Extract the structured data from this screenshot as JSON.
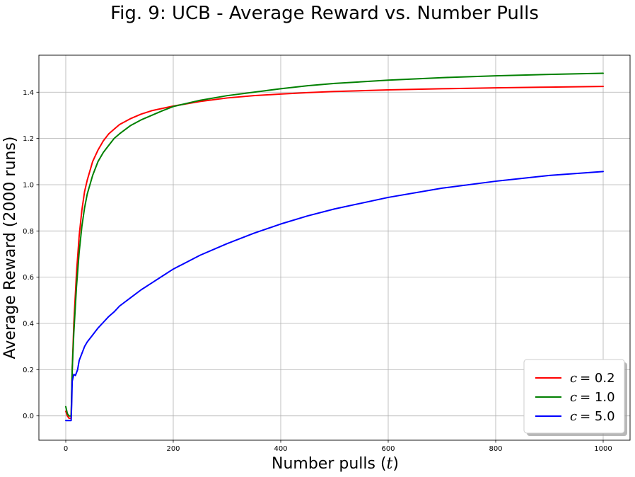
{
  "chart_data": {
    "type": "line",
    "title": "Fig. 9: UCB - Average Reward vs. Number Pulls",
    "xlabel_prefix": "Number pulls (",
    "xlabel_var": "t",
    "xlabel_suffix": ")",
    "ylabel": "Average Reward (2000 runs)",
    "xlim": [
      -50,
      1050
    ],
    "ylim": [
      -0.105,
      1.56
    ],
    "xticks": [
      0,
      200,
      400,
      600,
      800,
      1000
    ],
    "xtick_labels": [
      "0",
      "200",
      "400",
      "600",
      "800",
      "1000"
    ],
    "yticks": [
      0.0,
      0.2,
      0.4,
      0.6,
      0.8,
      1.0,
      1.2,
      1.4
    ],
    "ytick_labels": [
      "0.0",
      "0.2",
      "0.4",
      "0.6",
      "0.8",
      "1.0",
      "1.2",
      "1.4"
    ],
    "grid": true,
    "legend_position": "lower-right",
    "series": [
      {
        "name": "c = 0.2",
        "legend_var": "c",
        "legend_value": "= 0.2",
        "color": "#ff0000",
        "points": [
          [
            0,
            0.02
          ],
          [
            3,
            0.0
          ],
          [
            6,
            -0.01
          ],
          [
            10,
            -0.01
          ],
          [
            11,
            0.1
          ],
          [
            12,
            0.2
          ],
          [
            15,
            0.4
          ],
          [
            20,
            0.62
          ],
          [
            25,
            0.78
          ],
          [
            30,
            0.89
          ],
          [
            35,
            0.97
          ],
          [
            40,
            1.02
          ],
          [
            50,
            1.1
          ],
          [
            60,
            1.15
          ],
          [
            70,
            1.19
          ],
          [
            80,
            1.22
          ],
          [
            90,
            1.24
          ],
          [
            100,
            1.26
          ],
          [
            120,
            1.285
          ],
          [
            140,
            1.305
          ],
          [
            160,
            1.32
          ],
          [
            180,
            1.33
          ],
          [
            200,
            1.34
          ],
          [
            250,
            1.36
          ],
          [
            300,
            1.375
          ],
          [
            350,
            1.385
          ],
          [
            400,
            1.392
          ],
          [
            450,
            1.398
          ],
          [
            500,
            1.403
          ],
          [
            600,
            1.41
          ],
          [
            700,
            1.415
          ],
          [
            800,
            1.419
          ],
          [
            900,
            1.422
          ],
          [
            1000,
            1.425
          ]
        ]
      },
      {
        "name": "c = 1.0",
        "legend_var": "c",
        "legend_value": "= 1.0",
        "color": "#008000",
        "points": [
          [
            0,
            0.04
          ],
          [
            3,
            0.01
          ],
          [
            6,
            0.0
          ],
          [
            10,
            0.0
          ],
          [
            11,
            0.1
          ],
          [
            12,
            0.2
          ],
          [
            15,
            0.36
          ],
          [
            20,
            0.56
          ],
          [
            25,
            0.71
          ],
          [
            30,
            0.82
          ],
          [
            35,
            0.9
          ],
          [
            40,
            0.96
          ],
          [
            50,
            1.04
          ],
          [
            60,
            1.1
          ],
          [
            70,
            1.14
          ],
          [
            80,
            1.17
          ],
          [
            90,
            1.2
          ],
          [
            100,
            1.22
          ],
          [
            120,
            1.255
          ],
          [
            140,
            1.28
          ],
          [
            160,
            1.3
          ],
          [
            180,
            1.32
          ],
          [
            200,
            1.338
          ],
          [
            250,
            1.365
          ],
          [
            300,
            1.385
          ],
          [
            350,
            1.4
          ],
          [
            400,
            1.415
          ],
          [
            450,
            1.428
          ],
          [
            500,
            1.438
          ],
          [
            600,
            1.452
          ],
          [
            700,
            1.463
          ],
          [
            800,
            1.471
          ],
          [
            900,
            1.477
          ],
          [
            1000,
            1.482
          ]
        ]
      },
      {
        "name": "c = 5.0",
        "legend_var": "c",
        "legend_value": "= 5.0",
        "color": "#0000ff",
        "points": [
          [
            0,
            -0.02
          ],
          [
            3,
            -0.02
          ],
          [
            6,
            -0.02
          ],
          [
            10,
            -0.02
          ],
          [
            11,
            0.05
          ],
          [
            12,
            0.15
          ],
          [
            15,
            0.18
          ],
          [
            18,
            0.175
          ],
          [
            22,
            0.2
          ],
          [
            25,
            0.24
          ],
          [
            30,
            0.27
          ],
          [
            35,
            0.3
          ],
          [
            40,
            0.32
          ],
          [
            50,
            0.35
          ],
          [
            60,
            0.38
          ],
          [
            70,
            0.405
          ],
          [
            80,
            0.43
          ],
          [
            90,
            0.45
          ],
          [
            100,
            0.475
          ],
          [
            120,
            0.51
          ],
          [
            140,
            0.545
          ],
          [
            160,
            0.575
          ],
          [
            180,
            0.605
          ],
          [
            200,
            0.635
          ],
          [
            250,
            0.695
          ],
          [
            300,
            0.745
          ],
          [
            350,
            0.79
          ],
          [
            400,
            0.83
          ],
          [
            450,
            0.865
          ],
          [
            500,
            0.895
          ],
          [
            600,
            0.945
          ],
          [
            700,
            0.985
          ],
          [
            800,
            1.015
          ],
          [
            900,
            1.04
          ],
          [
            1000,
            1.057
          ]
        ]
      }
    ]
  }
}
